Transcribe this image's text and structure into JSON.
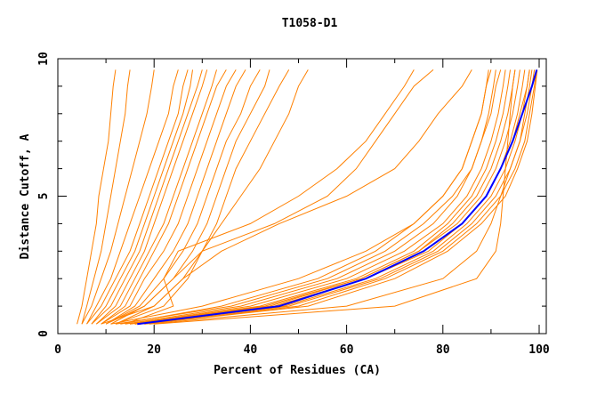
{
  "chart_data": {
    "type": "line",
    "title": "T1058-D1",
    "xlabel": "Percent of Residues (CA)",
    "ylabel": "Distance Cutoff, A",
    "xlim": [
      0,
      100
    ],
    "ylim": [
      0,
      10
    ],
    "x_ticks": [
      "0",
      "20",
      "40",
      "60",
      "80",
      "100"
    ],
    "y_ticks": [
      "0",
      "5",
      "10"
    ],
    "grid": false,
    "y_levels": [
      0.35,
      1,
      2,
      3,
      4,
      5,
      6,
      7,
      8,
      9,
      9.6
    ],
    "colors": {
      "models": "#ff8000",
      "highlight": "#0000ff"
    },
    "highlight_series": {
      "x": [
        16.5,
        46,
        64,
        76,
        84,
        89,
        92,
        94.5,
        96.5,
        98.5,
        99.5
      ]
    },
    "series": [
      {
        "x": [
          4,
          5,
          6,
          7,
          8,
          8.5,
          9.5,
          10.5,
          11,
          11.5,
          12
        ]
      },
      {
        "x": [
          5,
          6,
          7.5,
          9,
          10,
          11,
          12,
          13,
          14,
          14.5,
          15
        ]
      },
      {
        "x": [
          5,
          7,
          9,
          11,
          12.5,
          14,
          15.5,
          17,
          18.5,
          19.5,
          20
        ]
      },
      {
        "x": [
          6,
          8,
          11,
          13,
          15,
          17,
          19,
          21,
          23,
          24,
          25
        ]
      },
      {
        "x": [
          6,
          9,
          12,
          15,
          17,
          19,
          21,
          23,
          25,
          26,
          27
        ]
      },
      {
        "x": [
          7,
          10,
          13,
          16,
          18,
          20,
          22,
          24,
          26,
          27.5,
          28
        ]
      },
      {
        "x": [
          7,
          11,
          14,
          17,
          19,
          21,
          23,
          25,
          27,
          29,
          30
        ]
      },
      {
        "x": [
          8,
          12,
          15,
          18,
          20,
          22,
          24,
          26,
          28,
          30,
          31
        ]
      },
      {
        "x": [
          8,
          13,
          16,
          19,
          22,
          24,
          26,
          28,
          30,
          32,
          33
        ]
      },
      {
        "x": [
          9,
          14,
          17,
          20,
          23,
          25,
          27,
          29,
          31,
          33,
          35
        ]
      },
      {
        "x": [
          9,
          15,
          18,
          22,
          25,
          27,
          29,
          31,
          33,
          35,
          37
        ]
      },
      {
        "x": [
          10,
          16,
          20,
          24,
          27,
          29,
          31,
          33,
          35,
          37,
          39
        ]
      },
      {
        "x": [
          10,
          17,
          22,
          26,
          29,
          31,
          33,
          35,
          38,
          40,
          42
        ]
      },
      {
        "x": [
          11,
          18,
          24,
          28,
          31,
          33,
          35,
          37,
          40,
          43,
          44
        ]
      },
      {
        "x": [
          12,
          20,
          26,
          30,
          33,
          35,
          37,
          40,
          43,
          46,
          48
        ]
      },
      {
        "x": [
          12,
          22,
          27,
          30,
          34,
          38,
          42,
          45,
          48,
          50,
          52
        ]
      },
      {
        "x": [
          14,
          24,
          22,
          25,
          40,
          50,
          58,
          64,
          68,
          72,
          74
        ]
      },
      {
        "x": [
          10,
          18,
          24,
          30,
          45,
          56,
          62,
          66,
          70,
          74,
          78
        ]
      },
      {
        "x": [
          9,
          20,
          26,
          34,
          46,
          60,
          70,
          75,
          79,
          84,
          86
        ]
      },
      {
        "x": [
          13,
          34,
          54,
          66,
          74,
          80,
          84,
          86,
          88,
          89,
          90
        ]
      },
      {
        "x": [
          14,
          38,
          58,
          70,
          78,
          83,
          86,
          88,
          90,
          91,
          92
        ]
      },
      {
        "x": [
          15,
          40,
          60,
          72,
          80,
          85,
          88,
          90,
          91.5,
          92.5,
          93
        ]
      },
      {
        "x": [
          15,
          42,
          62,
          74,
          81,
          86,
          89,
          91,
          92.5,
          93.5,
          94
        ]
      },
      {
        "x": [
          16,
          43,
          63,
          75,
          82,
          87,
          90,
          92,
          93.5,
          94.5,
          95
        ]
      },
      {
        "x": [
          16,
          44,
          63,
          75,
          83,
          88,
          91,
          93,
          94.5,
          95.5,
          96
        ]
      },
      {
        "x": [
          16,
          45,
          64,
          76,
          84,
          89,
          92,
          94,
          95.5,
          96.5,
          97
        ]
      },
      {
        "x": [
          17,
          47,
          66,
          78,
          85,
          90,
          93,
          95,
          96.5,
          97.5,
          98
        ]
      },
      {
        "x": [
          17,
          48,
          67,
          79,
          86,
          91,
          94,
          96,
          97.5,
          98.5,
          99
        ]
      },
      {
        "x": [
          18,
          50,
          68,
          80,
          87,
          92,
          95,
          97,
          98,
          99,
          99.5
        ]
      },
      {
        "x": [
          18,
          52,
          70,
          81,
          88,
          93,
          95.5,
          97.5,
          98.5,
          99.2,
          99.6
        ]
      },
      {
        "x": [
          12,
          36,
          56,
          68,
          76,
          82,
          86,
          88,
          89.5,
          90.5,
          91
        ]
      },
      {
        "x": [
          11,
          30,
          50,
          64,
          74,
          80,
          84,
          86,
          88,
          89,
          89.5
        ]
      },
      {
        "x": [
          20,
          70,
          87,
          91,
          92,
          92.5,
          93,
          93.5,
          94,
          94.5,
          95
        ]
      },
      {
        "x": [
          19,
          60,
          80,
          87,
          90,
          92,
          94,
          96,
          97,
          98,
          98.5
        ]
      },
      {
        "x": [
          17,
          46,
          64,
          77,
          84,
          89,
          92,
          94.5,
          96,
          97.5,
          98
        ]
      }
    ]
  }
}
